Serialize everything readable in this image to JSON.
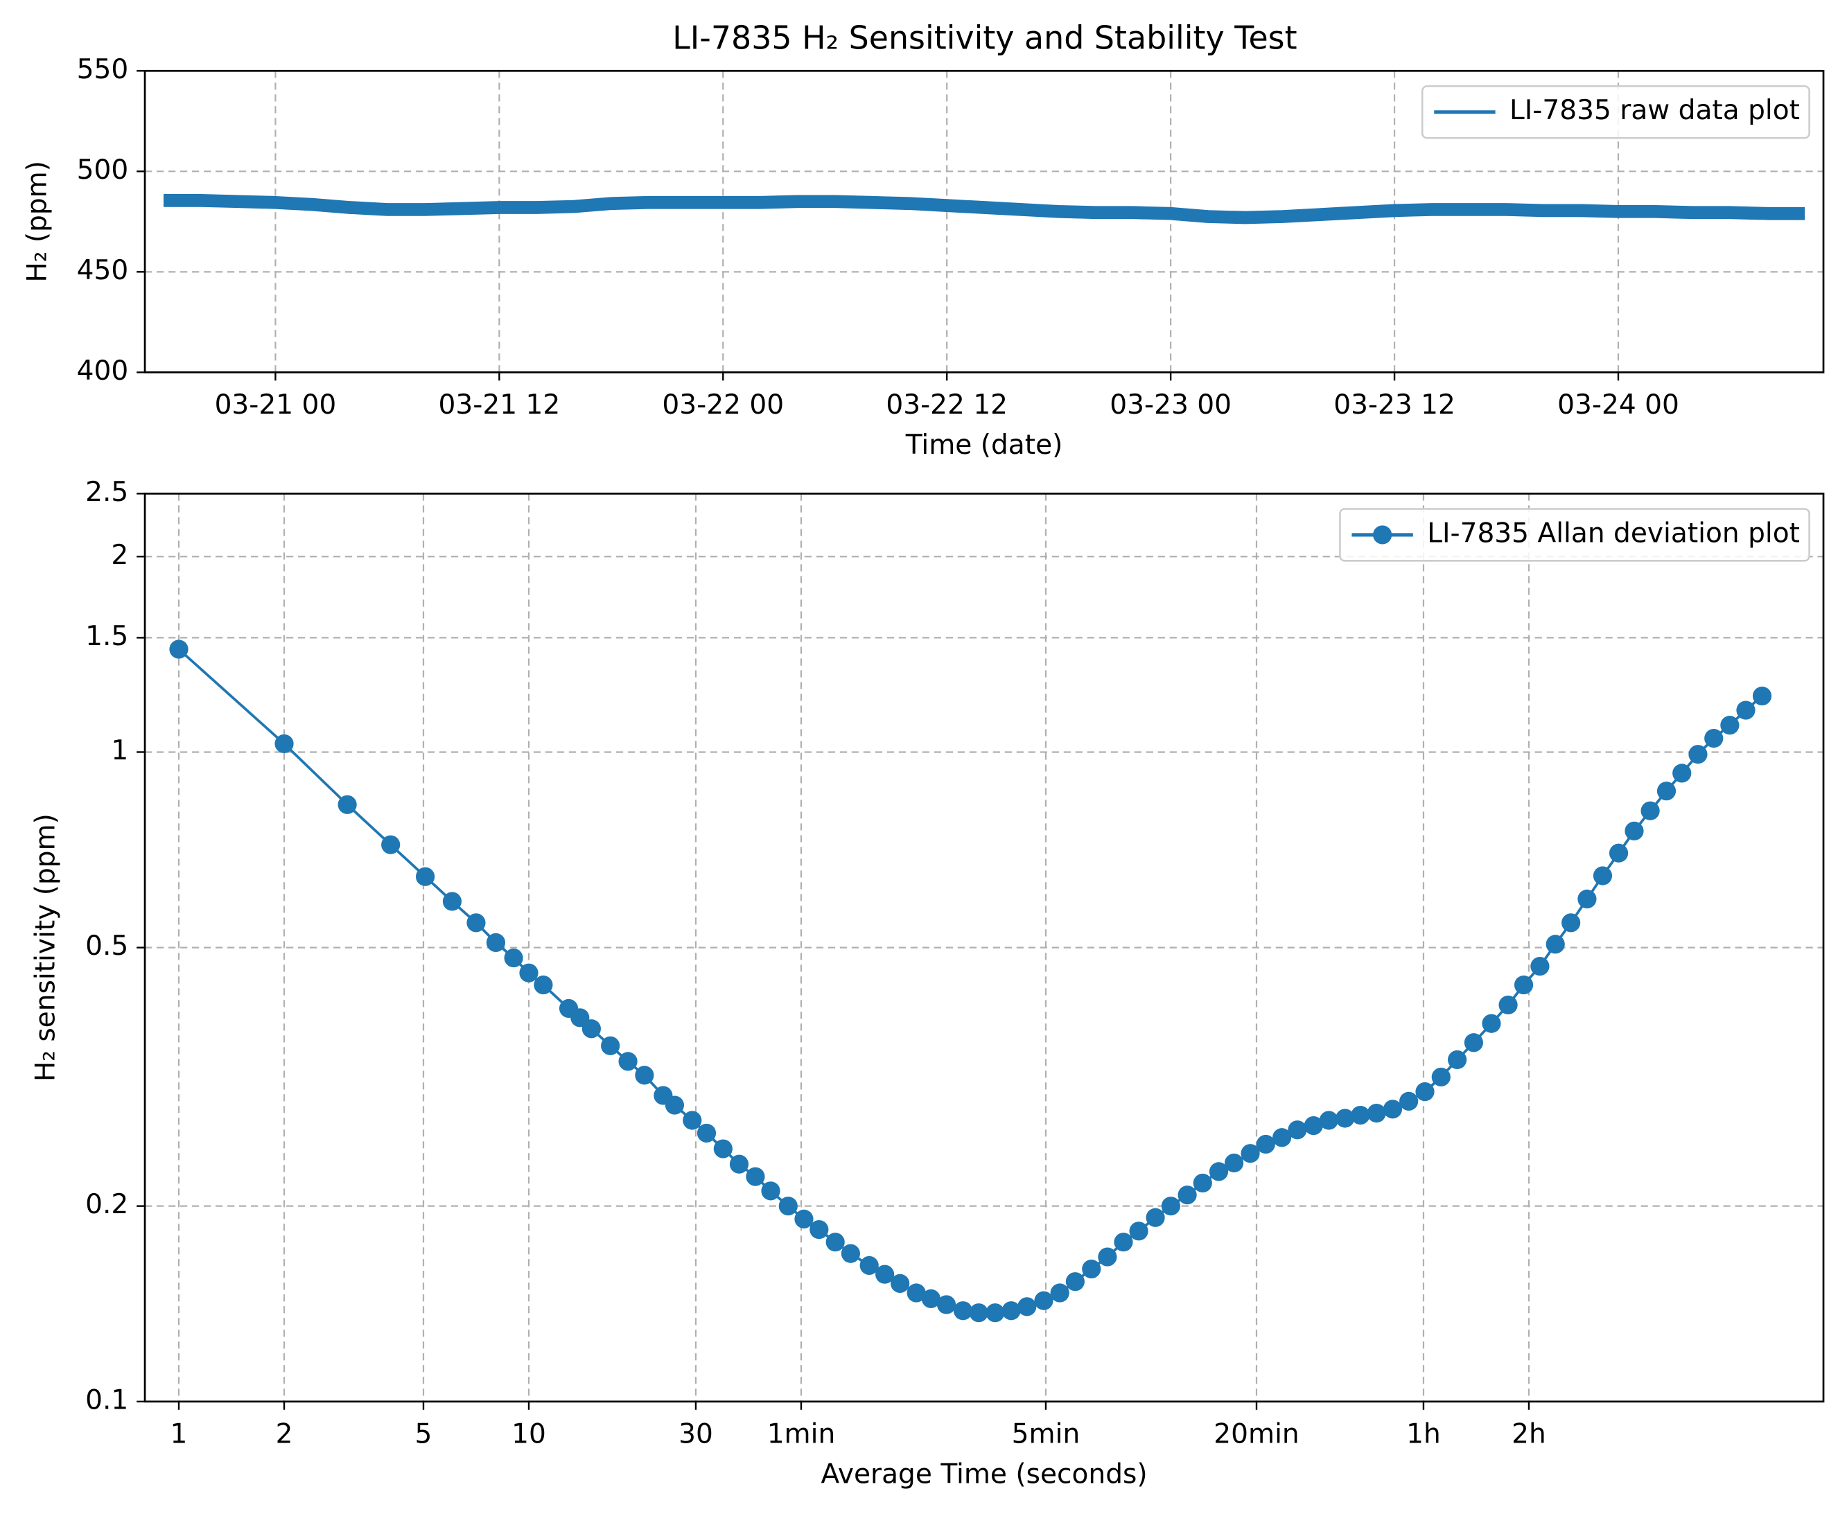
{
  "chart_data": [
    {
      "type": "line",
      "title": "LI-7835 H₂ Sensitivity and Stability Test",
      "xlabel": "Time (date)",
      "ylabel": "H₂ (ppm)",
      "x": [
        "03-20 18",
        "03-20 20",
        "03-20 22",
        "03-21 00",
        "03-21 02",
        "03-21 04",
        "03-21 06",
        "03-21 08",
        "03-21 10",
        "03-21 12",
        "03-21 14",
        "03-21 16",
        "03-21 18",
        "03-21 20",
        "03-21 22",
        "03-22 00",
        "03-22 02",
        "03-22 04",
        "03-22 06",
        "03-22 08",
        "03-22 10",
        "03-22 12",
        "03-22 14",
        "03-22 16",
        "03-22 18",
        "03-22 20",
        "03-22 22",
        "03-23 00",
        "03-23 02",
        "03-23 04",
        "03-23 06",
        "03-23 08",
        "03-23 10",
        "03-23 12",
        "03-23 14",
        "03-23 16",
        "03-23 18",
        "03-23 20",
        "03-23 22",
        "03-24 00",
        "03-24 02",
        "03-24 04",
        "03-24 06",
        "03-24 08",
        "03-24 10"
      ],
      "series": [
        {
          "name": "LI-7835 raw data plot",
          "color": "#1f77b4",
          "values": [
            485.5,
            485.5,
            485,
            484.5,
            483.5,
            482,
            481,
            481,
            481.5,
            482,
            482,
            482.5,
            484,
            484.5,
            484.5,
            484.5,
            484.5,
            485,
            485,
            484.5,
            484,
            483,
            482,
            481,
            480,
            479.5,
            479.5,
            479,
            477.5,
            477,
            477.5,
            478.5,
            479.5,
            480.5,
            481,
            481,
            481,
            480.5,
            480.5,
            480,
            480,
            479.5,
            479.5,
            479,
            479
          ]
        }
      ],
      "xlim": [
        "03-20 17",
        "03-24 11"
      ],
      "xticks": [
        "03-21 00",
        "03-21 12",
        "03-22 00",
        "03-22 12",
        "03-23 00",
        "03-23 12",
        "03-24 00"
      ],
      "ylim": [
        400,
        550
      ],
      "yticks": [
        400,
        450,
        500,
        550
      ],
      "grid": true,
      "legend": "upper right"
    },
    {
      "type": "line",
      "xlabel": "Average Time (seconds)",
      "ylabel": "H₂ sensitivity (ppm)",
      "xscale": "log",
      "yscale": "log",
      "marker": "o",
      "x": [
        1,
        2,
        3.03,
        4.03,
        5.06,
        6.04,
        7.07,
        8.05,
        9.05,
        10,
        11,
        13,
        14,
        15.1,
        17.1,
        19.2,
        21.4,
        24.2,
        26.1,
        29.3,
        32.2,
        35.9,
        39.9,
        44.4,
        49.1,
        55.1,
        61.1,
        67.5,
        75.1,
        83.1,
        93.9,
        104,
        115,
        128,
        141,
        156,
        174,
        193,
        215,
        239,
        265,
        296,
        329,
        364,
        405,
        450,
        500,
        553,
        617,
        683,
        761,
        842,
        936,
        1035,
        1152,
        1275,
        1418,
        1570,
        1746,
        1931,
        2148,
        2377,
        2643,
        2939,
        3267,
        3634,
        4041,
        4494,
        5009,
        5628,
        6283,
        6960,
        7743,
        8572,
        9494,
        10557,
        11700,
        13000,
        14400,
        16000,
        17800,
        19700,
        21900,
        24300,
        27000,
        30000,
        33400
      ],
      "series": [
        {
          "name": "LI-7835 Allan deviation plot",
          "color": "#1f77b4",
          "values": [
            1.44,
            1.03,
            0.83,
            0.72,
            0.643,
            0.589,
            0.546,
            0.509,
            0.482,
            0.457,
            0.438,
            0.403,
            0.39,
            0.375,
            0.353,
            0.334,
            0.318,
            0.296,
            0.286,
            0.271,
            0.259,
            0.245,
            0.232,
            0.222,
            0.211,
            0.2,
            0.191,
            0.184,
            0.176,
            0.169,
            0.162,
            0.157,
            0.152,
            0.147,
            0.144,
            0.141,
            0.138,
            0.137,
            0.137,
            0.138,
            0.14,
            0.143,
            0.147,
            0.153,
            0.16,
            0.167,
            0.176,
            0.183,
            0.192,
            0.2,
            0.208,
            0.217,
            0.226,
            0.233,
            0.241,
            0.249,
            0.255,
            0.262,
            0.266,
            0.271,
            0.273,
            0.276,
            0.278,
            0.282,
            0.29,
            0.3,
            0.316,
            0.336,
            0.357,
            0.382,
            0.408,
            0.438,
            0.468,
            0.506,
            0.546,
            0.594,
            0.645,
            0.699,
            0.756,
            0.812,
            0.871,
            0.928,
            0.992,
            1.05,
            1.1,
            1.16,
            1.22
          ]
        }
      ],
      "xlim": [
        0.8,
        50000
      ],
      "xticks": [
        1,
        2,
        5,
        10,
        30,
        {
          "value": 60,
          "label": "1min"
        },
        {
          "value": 300,
          "label": "5min"
        },
        {
          "value": 1200,
          "label": "20min"
        },
        {
          "value": 3600,
          "label": "1h"
        },
        {
          "value": 7200,
          "label": "2h"
        }
      ],
      "ylim": [
        0.1,
        2.5
      ],
      "yticks": [
        0.1,
        0.2,
        0.5,
        1,
        1.5,
        2,
        2.5
      ],
      "grid": true,
      "legend": "upper right"
    }
  ]
}
